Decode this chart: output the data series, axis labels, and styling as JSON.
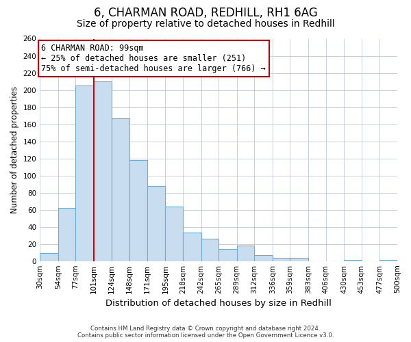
{
  "title": "6, CHARMAN ROAD, REDHILL, RH1 6AG",
  "subtitle": "Size of property relative to detached houses in Redhill",
  "xlabel": "Distribution of detached houses by size in Redhill",
  "ylabel": "Number of detached properties",
  "footer_line1": "Contains HM Land Registry data © Crown copyright and database right 2024.",
  "footer_line2": "Contains public sector information licensed under the Open Government Licence v3.0.",
  "bin_edges": [
    30,
    54,
    77,
    101,
    124,
    148,
    171,
    195,
    218,
    242,
    265,
    289,
    312,
    336,
    359,
    383,
    406,
    430,
    453,
    477,
    500
  ],
  "bin_labels": [
    "30sqm",
    "54sqm",
    "77sqm",
    "101sqm",
    "124sqm",
    "148sqm",
    "171sqm",
    "195sqm",
    "218sqm",
    "242sqm",
    "265sqm",
    "289sqm",
    "312sqm",
    "336sqm",
    "359sqm",
    "383sqm",
    "406sqm",
    "430sqm",
    "453sqm",
    "477sqm",
    "500sqm"
  ],
  "bar_heights": [
    9,
    62,
    205,
    210,
    167,
    118,
    88,
    64,
    33,
    26,
    14,
    18,
    7,
    4,
    4,
    0,
    0,
    1,
    0,
    1
  ],
  "bar_color": "#c9ddf0",
  "bar_edge_color": "#6aaed6",
  "vline_x": 101,
  "vline_color": "#cc0000",
  "annotation_text_line1": "6 CHARMAN ROAD: 99sqm",
  "annotation_text_line2": "← 25% of detached houses are smaller (251)",
  "annotation_text_line3": "75% of semi-detached houses are larger (766) →",
  "ylim": [
    0,
    260
  ],
  "yticks": [
    0,
    20,
    40,
    60,
    80,
    100,
    120,
    140,
    160,
    180,
    200,
    220,
    240,
    260
  ],
  "background_color": "#ffffff",
  "grid_color": "#c0c8d8",
  "title_fontsize": 12,
  "subtitle_fontsize": 10,
  "xlabel_fontsize": 9.5,
  "ylabel_fontsize": 8.5,
  "tick_fontsize": 7.5,
  "annotation_fontsize": 8.5,
  "footer_fontsize": 6.2
}
